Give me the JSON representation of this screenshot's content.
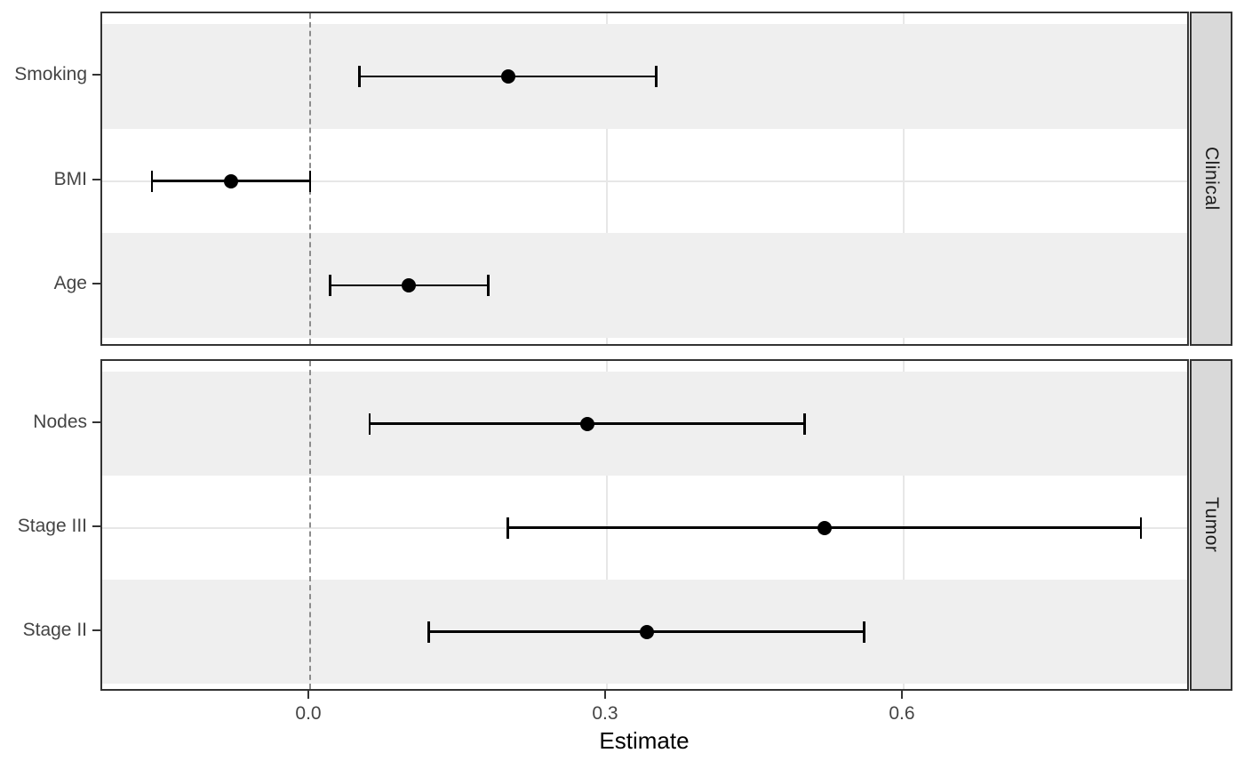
{
  "chart_data": {
    "type": "scatter",
    "subtype": "forest-plot-with-error-bars",
    "title": "",
    "xlabel": "Estimate",
    "ylabel": "",
    "xlim": [
      -0.21,
      0.89
    ],
    "x_tick_values": [
      0.0,
      0.3,
      0.6
    ],
    "x_tick_labels": [
      "0.0",
      "0.3",
      "0.6"
    ],
    "grid": true,
    "legend": false,
    "reference_line": {
      "x": 0.0,
      "style": "dashed",
      "color": "#8c8c8c"
    },
    "facets": [
      {
        "label": "Clinical",
        "rows": [
          {
            "label": "Smoking",
            "estimate": 0.2,
            "ci_lower": 0.05,
            "ci_upper": 0.35
          },
          {
            "label": "BMI",
            "estimate": -0.08,
            "ci_lower": -0.16,
            "ci_upper": 0.0
          },
          {
            "label": "Age",
            "estimate": 0.1,
            "ci_lower": 0.02,
            "ci_upper": 0.18
          }
        ]
      },
      {
        "label": "Tumor",
        "rows": [
          {
            "label": "Nodes",
            "estimate": 0.28,
            "ci_lower": 0.06,
            "ci_upper": 0.5
          },
          {
            "label": "Stage III",
            "estimate": 0.52,
            "ci_lower": 0.2,
            "ci_upper": 0.84
          },
          {
            "label": "Stage II",
            "estimate": 0.34,
            "ci_lower": 0.12,
            "ci_upper": 0.56
          }
        ]
      }
    ]
  },
  "colors": {
    "stripe_band": "#efefef",
    "strip_fill": "#d9d9d9",
    "panel_border": "#333333",
    "gridline": "#e7e7e7",
    "reference_dashed": "#8c8c8c",
    "point_and_bar": "#000000",
    "axis_text": "#444444",
    "axis_title": "#000000",
    "strip_text": "#1a1a1a"
  }
}
